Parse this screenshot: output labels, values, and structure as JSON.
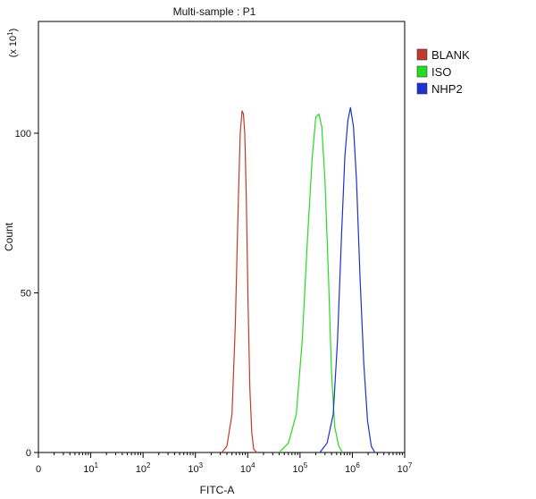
{
  "chart_data": {
    "type": "line",
    "title": "Multi-sample : P1",
    "xlabel": "FITC-A",
    "ylabel": "Count",
    "y_multiplier_label": "(x 10",
    "y_multiplier_exp": "1",
    "y_multiplier_close": ")",
    "x_scale": "log",
    "xlim": [
      1,
      10000000
    ],
    "ylim": [
      0,
      135
    ],
    "y_ticks": [
      0,
      50,
      100
    ],
    "x_ticks": [
      {
        "value": 1,
        "label": "0",
        "exp": ""
      },
      {
        "value": 10,
        "label": "10",
        "exp": "1"
      },
      {
        "value": 100,
        "label": "10",
        "exp": "2"
      },
      {
        "value": 1000,
        "label": "10",
        "exp": "3"
      },
      {
        "value": 10000,
        "label": "10",
        "exp": "4"
      },
      {
        "value": 100000,
        "label": "10",
        "exp": "5"
      },
      {
        "value": 1000000,
        "label": "10",
        "exp": "6"
      },
      {
        "value": 10000000,
        "label": "10",
        "exp": "7"
      }
    ],
    "grid": false,
    "legend_position": "top-right",
    "series": [
      {
        "name": "BLANK",
        "color": "#c0392b",
        "x": [
          3200,
          4000,
          5000,
          5800,
          6600,
          7200,
          7800,
          8300,
          8800,
          9400,
          10200,
          11000,
          12000,
          13000,
          15000
        ],
        "y": [
          0,
          2,
          12,
          40,
          78,
          100,
          107,
          106,
          100,
          80,
          45,
          20,
          6,
          1,
          0
        ]
      },
      {
        "name": "ISO",
        "color": "#22dd22",
        "x": [
          40000,
          60000,
          85000,
          110000,
          140000,
          170000,
          200000,
          230000,
          260000,
          300000,
          350000,
          400000,
          460000,
          550000,
          650000
        ],
        "y": [
          0,
          3,
          12,
          35,
          68,
          92,
          105,
          106,
          102,
          85,
          55,
          25,
          8,
          2,
          0
        ]
      },
      {
        "name": "NHP2",
        "color": "#1f2fd0",
        "x": [
          240000,
          330000,
          430000,
          520000,
          620000,
          720000,
          820000,
          920000,
          1050000,
          1200000,
          1400000,
          1650000,
          1950000,
          2300000,
          2700000
        ],
        "y": [
          0,
          3,
          12,
          35,
          68,
          93,
          104,
          108,
          102,
          85,
          55,
          28,
          10,
          2,
          0
        ]
      }
    ]
  }
}
